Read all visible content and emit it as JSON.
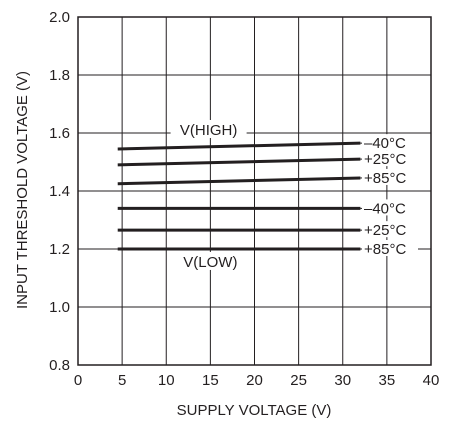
{
  "chart_data": {
    "type": "line",
    "title": "",
    "xlabel": "SUPPLY VOLTAGE (V)",
    "ylabel": "INPUT THRESHOLD VOLTAGE (V)",
    "xlim": [
      0,
      40
    ],
    "ylim": [
      0.8,
      2.0
    ],
    "xticks": [
      "0",
      "5",
      "10",
      "15",
      "20",
      "25",
      "30",
      "35",
      "40"
    ],
    "yticks": [
      "0.8",
      "1.0",
      "1.2",
      "1.4",
      "1.6",
      "1.8",
      "2.0"
    ],
    "grid": true,
    "series": [
      {
        "name": "–40°C",
        "group": "V(HIGH)",
        "x": [
          4.5,
          32
        ],
        "y": [
          1.545,
          1.565
        ]
      },
      {
        "name": "+25°C",
        "group": "V(HIGH)",
        "x": [
          4.5,
          32
        ],
        "y": [
          1.49,
          1.51
        ]
      },
      {
        "name": "+85°C",
        "group": "V(HIGH)",
        "x": [
          4.5,
          32
        ],
        "y": [
          1.425,
          1.445
        ]
      },
      {
        "name": "–40°C",
        "group": "V(LOW)",
        "x": [
          4.5,
          32
        ],
        "y": [
          1.34,
          1.34
        ]
      },
      {
        "name": "+25°C",
        "group": "V(LOW)",
        "x": [
          4.5,
          32
        ],
        "y": [
          1.265,
          1.265
        ]
      },
      {
        "name": "+85°C",
        "group": "V(LOW)",
        "x": [
          4.5,
          32
        ],
        "y": [
          1.2,
          1.2
        ]
      }
    ],
    "annotations": [
      "V(HIGH)",
      "V(LOW)"
    ]
  }
}
